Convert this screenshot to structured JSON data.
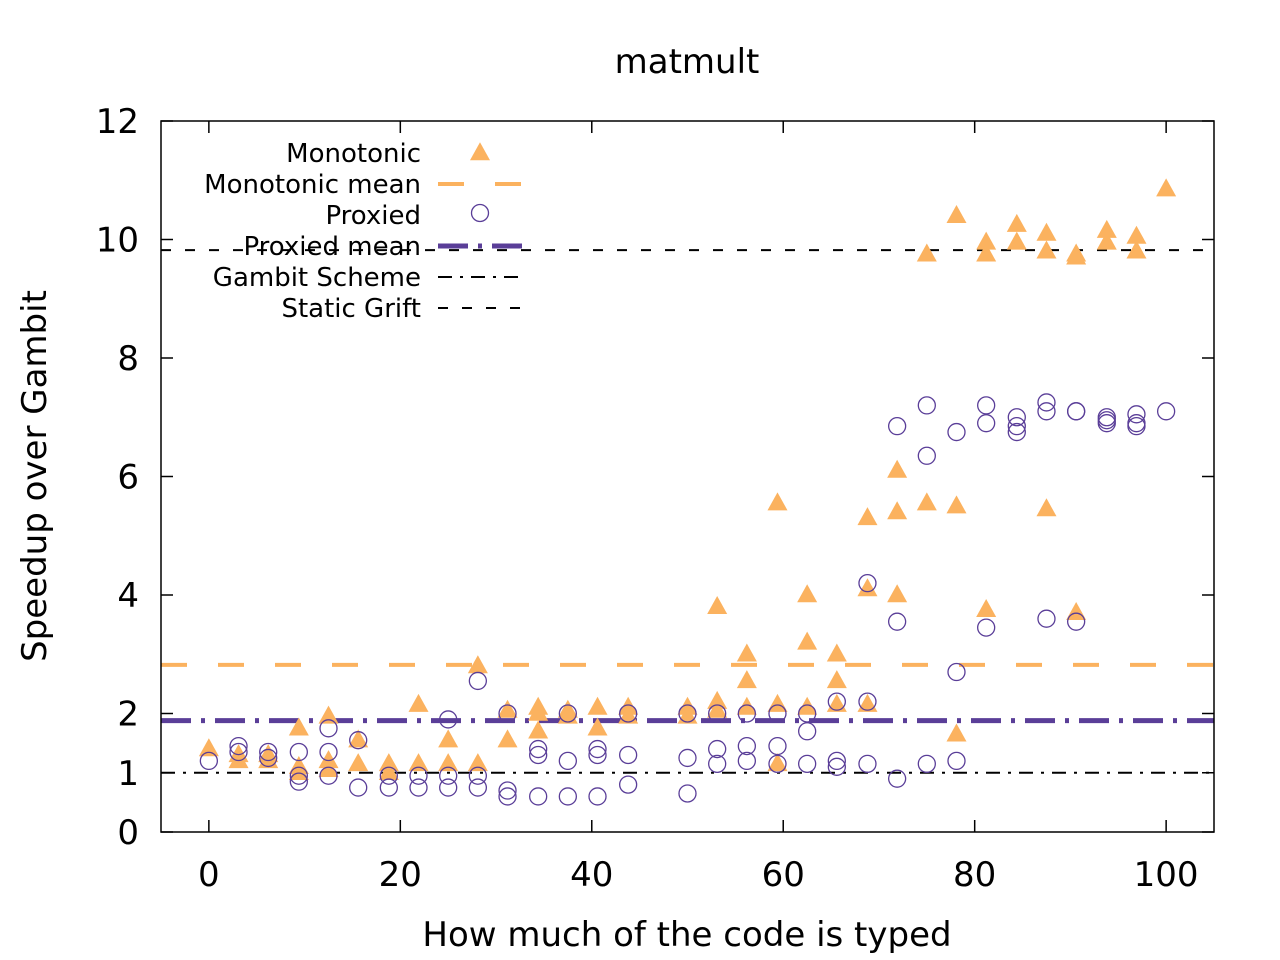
{
  "chart_data": {
    "type": "scatter",
    "title": "matmult",
    "xlabel": "How much of the code is typed",
    "ylabel": "Speedup over Gambit",
    "xlim": [
      -5,
      105
    ],
    "ylim": [
      0,
      12
    ],
    "xticks": [
      0,
      20,
      40,
      60,
      80,
      100
    ],
    "yticks": [
      0,
      1,
      2,
      4,
      6,
      8,
      10,
      12
    ],
    "grid": false,
    "legend_position": "top-left",
    "colors": {
      "monotonic": "#fbb25f",
      "proxied": "#5a3e98",
      "gambit": "#000000",
      "static": "#000000"
    },
    "series": [
      {
        "name": "Monotonic",
        "kind": "points",
        "marker": "filled-triangle",
        "points": [
          [
            0,
            1.4
          ],
          [
            3.1,
            1.3
          ],
          [
            3.1,
            1.2
          ],
          [
            6.2,
            1.3
          ],
          [
            6.2,
            1.2
          ],
          [
            9.4,
            1.75
          ],
          [
            9.4,
            1.1
          ],
          [
            9.4,
            1.0
          ],
          [
            12.5,
            1.95
          ],
          [
            12.5,
            1.2
          ],
          [
            12.5,
            1.05
          ],
          [
            15.6,
            1.55
          ],
          [
            15.6,
            1.15
          ],
          [
            18.8,
            1.15
          ],
          [
            18.8,
            1.0
          ],
          [
            21.9,
            2.15
          ],
          [
            21.9,
            1.15
          ],
          [
            25,
            1.55
          ],
          [
            25,
            1.15
          ],
          [
            28.1,
            2.8
          ],
          [
            28.1,
            1.15
          ],
          [
            31.2,
            2.05
          ],
          [
            31.2,
            1.55
          ],
          [
            34.4,
            2.1
          ],
          [
            34.4,
            2.0
          ],
          [
            34.4,
            1.7
          ],
          [
            37.5,
            2.05
          ],
          [
            37.5,
            1.95
          ],
          [
            40.6,
            2.1
          ],
          [
            40.6,
            1.75
          ],
          [
            43.8,
            2.1
          ],
          [
            43.8,
            1.95
          ],
          [
            50,
            2.1
          ],
          [
            50,
            1.95
          ],
          [
            53.1,
            3.8
          ],
          [
            53.1,
            2.2
          ],
          [
            53.1,
            2.05
          ],
          [
            56.2,
            3.0
          ],
          [
            56.2,
            2.55
          ],
          [
            56.2,
            2.1
          ],
          [
            59.4,
            5.55
          ],
          [
            59.4,
            2.15
          ],
          [
            59.4,
            1.15
          ],
          [
            62.5,
            4.0
          ],
          [
            62.5,
            3.2
          ],
          [
            62.5,
            2.1
          ],
          [
            65.6,
            3.0
          ],
          [
            65.6,
            2.55
          ],
          [
            65.6,
            2.15
          ],
          [
            68.8,
            5.3
          ],
          [
            68.8,
            4.1
          ],
          [
            68.8,
            2.15
          ],
          [
            71.9,
            6.1
          ],
          [
            71.9,
            5.4
          ],
          [
            71.9,
            4.0
          ],
          [
            75,
            9.75
          ],
          [
            75,
            5.55
          ],
          [
            78.1,
            10.4
          ],
          [
            78.1,
            5.5
          ],
          [
            78.1,
            1.65
          ],
          [
            81.2,
            9.95
          ],
          [
            81.2,
            9.75
          ],
          [
            81.2,
            3.75
          ],
          [
            84.4,
            10.25
          ],
          [
            84.4,
            9.95
          ],
          [
            87.5,
            10.1
          ],
          [
            87.5,
            9.8
          ],
          [
            87.5,
            5.45
          ],
          [
            90.6,
            9.75
          ],
          [
            90.6,
            9.7
          ],
          [
            90.6,
            3.7
          ],
          [
            93.8,
            10.15
          ],
          [
            93.8,
            9.95
          ],
          [
            96.9,
            10.05
          ],
          [
            96.9,
            9.8
          ],
          [
            100,
            10.85
          ]
        ]
      },
      {
        "name": "Monotonic mean",
        "kind": "hline",
        "y": 2.82,
        "dash": "26 31",
        "width": 4
      },
      {
        "name": "Proxied",
        "kind": "points",
        "marker": "open-circle",
        "points": [
          [
            0,
            1.2
          ],
          [
            3.1,
            1.45
          ],
          [
            3.1,
            1.35
          ],
          [
            6.2,
            1.35
          ],
          [
            6.2,
            1.25
          ],
          [
            9.4,
            1.35
          ],
          [
            9.4,
            0.95
          ],
          [
            9.4,
            0.85
          ],
          [
            12.5,
            1.75
          ],
          [
            12.5,
            1.35
          ],
          [
            12.5,
            0.95
          ],
          [
            15.6,
            1.55
          ],
          [
            15.6,
            0.75
          ],
          [
            18.8,
            0.95
          ],
          [
            18.8,
            0.75
          ],
          [
            21.9,
            0.95
          ],
          [
            21.9,
            0.75
          ],
          [
            25,
            1.9
          ],
          [
            25,
            0.95
          ],
          [
            25,
            0.75
          ],
          [
            28.1,
            2.55
          ],
          [
            28.1,
            0.95
          ],
          [
            28.1,
            0.75
          ],
          [
            31.2,
            2.0
          ],
          [
            31.2,
            0.7
          ],
          [
            31.2,
            0.6
          ],
          [
            34.4,
            1.4
          ],
          [
            34.4,
            1.3
          ],
          [
            34.4,
            0.6
          ],
          [
            37.5,
            2.0
          ],
          [
            37.5,
            1.2
          ],
          [
            37.5,
            0.6
          ],
          [
            40.6,
            1.4
          ],
          [
            40.6,
            1.3
          ],
          [
            40.6,
            0.6
          ],
          [
            43.8,
            2.0
          ],
          [
            43.8,
            1.3
          ],
          [
            43.8,
            0.8
          ],
          [
            50,
            2.0
          ],
          [
            50,
            1.25
          ],
          [
            50,
            0.65
          ],
          [
            53.1,
            2.0
          ],
          [
            53.1,
            1.4
          ],
          [
            53.1,
            1.15
          ],
          [
            56.2,
            2.0
          ],
          [
            56.2,
            1.45
          ],
          [
            56.2,
            1.2
          ],
          [
            59.4,
            2.0
          ],
          [
            59.4,
            1.45
          ],
          [
            59.4,
            1.15
          ],
          [
            62.5,
            2.0
          ],
          [
            62.5,
            1.7
          ],
          [
            62.5,
            1.15
          ],
          [
            65.6,
            2.2
          ],
          [
            65.6,
            1.2
          ],
          [
            65.6,
            1.1
          ],
          [
            68.8,
            4.2
          ],
          [
            68.8,
            2.2
          ],
          [
            68.8,
            1.15
          ],
          [
            71.9,
            6.85
          ],
          [
            71.9,
            3.55
          ],
          [
            71.9,
            0.9
          ],
          [
            75,
            7.2
          ],
          [
            75,
            6.35
          ],
          [
            75,
            1.15
          ],
          [
            78.1,
            6.75
          ],
          [
            78.1,
            2.7
          ],
          [
            78.1,
            1.2
          ],
          [
            81.2,
            7.2
          ],
          [
            81.2,
            6.9
          ],
          [
            81.2,
            3.45
          ],
          [
            84.4,
            7.0
          ],
          [
            84.4,
            6.85
          ],
          [
            84.4,
            6.75
          ],
          [
            87.5,
            7.25
          ],
          [
            87.5,
            7.1
          ],
          [
            87.5,
            3.6
          ],
          [
            90.6,
            7.1
          ],
          [
            90.6,
            7.1
          ],
          [
            90.6,
            3.55
          ],
          [
            93.8,
            7.0
          ],
          [
            93.8,
            6.95
          ],
          [
            93.8,
            6.9
          ],
          [
            96.9,
            7.05
          ],
          [
            96.9,
            6.9
          ],
          [
            96.9,
            6.85
          ],
          [
            100,
            7.1
          ]
        ]
      },
      {
        "name": "Proxied mean",
        "kind": "hline",
        "y": 1.88,
        "dash": "30 10 4 10",
        "width": 5
      },
      {
        "name": "Gambit Scheme",
        "kind": "hline",
        "y": 1.0,
        "dash": "14 8 3 8",
        "width": 2
      },
      {
        "name": "Static Grift",
        "kind": "hline",
        "y": 9.82,
        "dash": "10 14",
        "width": 2
      }
    ]
  }
}
